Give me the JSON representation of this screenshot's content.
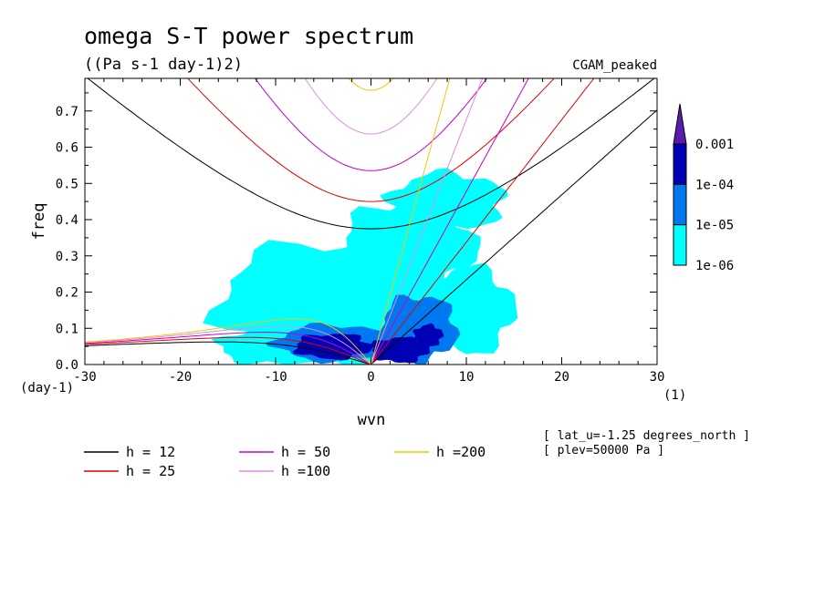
{
  "chart_data": {
    "type": "heatmap",
    "title": "omega S-T power spectrum",
    "subtitle": "((Pa s-1 day-1)2)",
    "annotation_right": "CGAM_peaked",
    "xlabel": "wvn",
    "ylabel": "freq",
    "x_unit": "(1)",
    "y_unit": "(day-1)",
    "xlim": [
      -30,
      30
    ],
    "ylim": [
      0,
      0.79
    ],
    "x_ticks": [
      "-30",
      "-20",
      "-10",
      "0",
      "10",
      "20",
      "30"
    ],
    "y_ticks": [
      "0.0",
      "0.1",
      "0.2",
      "0.3",
      "0.4",
      "0.5",
      "0.6",
      "0.7"
    ],
    "colorbar": {
      "levels": [
        "0.001",
        "1e-04",
        "1e-05",
        "1e-06"
      ],
      "colors": [
        "#5a1bb0",
        "#0000b4",
        "#0078f0",
        "#00ffff"
      ]
    },
    "dispersion_curves": [
      {
        "name": "h = 12",
        "h": 12,
        "color": "#000000"
      },
      {
        "name": "h = 25",
        "h": 25,
        "color": "#e00000"
      },
      {
        "name": "h = 50",
        "h": 50,
        "color": "#c800c8"
      },
      {
        "name": "h =100",
        "h": 100,
        "color": "#e08ce0"
      },
      {
        "name": "h =200",
        "h": 200,
        "color": "#f0c800"
      }
    ],
    "spectrum_regions": [
      {
        "level": "1e-06",
        "cx": -3,
        "cy": 0.18,
        "rx": 13,
        "ry": 0.16
      },
      {
        "level": "1e-06",
        "cx": 4,
        "cy": 0.33,
        "rx": 7,
        "ry": 0.12
      },
      {
        "level": "1e-06",
        "cx": 10,
        "cy": 0.15,
        "rx": 5,
        "ry": 0.12
      },
      {
        "level": "1e-06",
        "cx": -10,
        "cy": 0.05,
        "rx": 6,
        "ry": 0.05
      },
      {
        "level": "1e-06",
        "cx": 8,
        "cy": 0.45,
        "rx": 6,
        "ry": 0.08
      },
      {
        "level": "1e-05",
        "cx": -4,
        "cy": 0.06,
        "rx": 6,
        "ry": 0.05
      },
      {
        "level": "1e-05",
        "cx": 5,
        "cy": 0.1,
        "rx": 4,
        "ry": 0.09
      },
      {
        "level": "1e-04",
        "cx": -4,
        "cy": 0.05,
        "rx": 4,
        "ry": 0.035
      },
      {
        "level": "1e-04",
        "cx": 3,
        "cy": 0.04,
        "rx": 3,
        "ry": 0.035
      },
      {
        "level": "1e-04",
        "cx": 6,
        "cy": 0.08,
        "rx": 1.5,
        "ry": 0.03
      }
    ],
    "info_lines": [
      "[ lat_u=-1.25 degrees_north ]",
      "[ plev=50000 Pa ]"
    ]
  }
}
